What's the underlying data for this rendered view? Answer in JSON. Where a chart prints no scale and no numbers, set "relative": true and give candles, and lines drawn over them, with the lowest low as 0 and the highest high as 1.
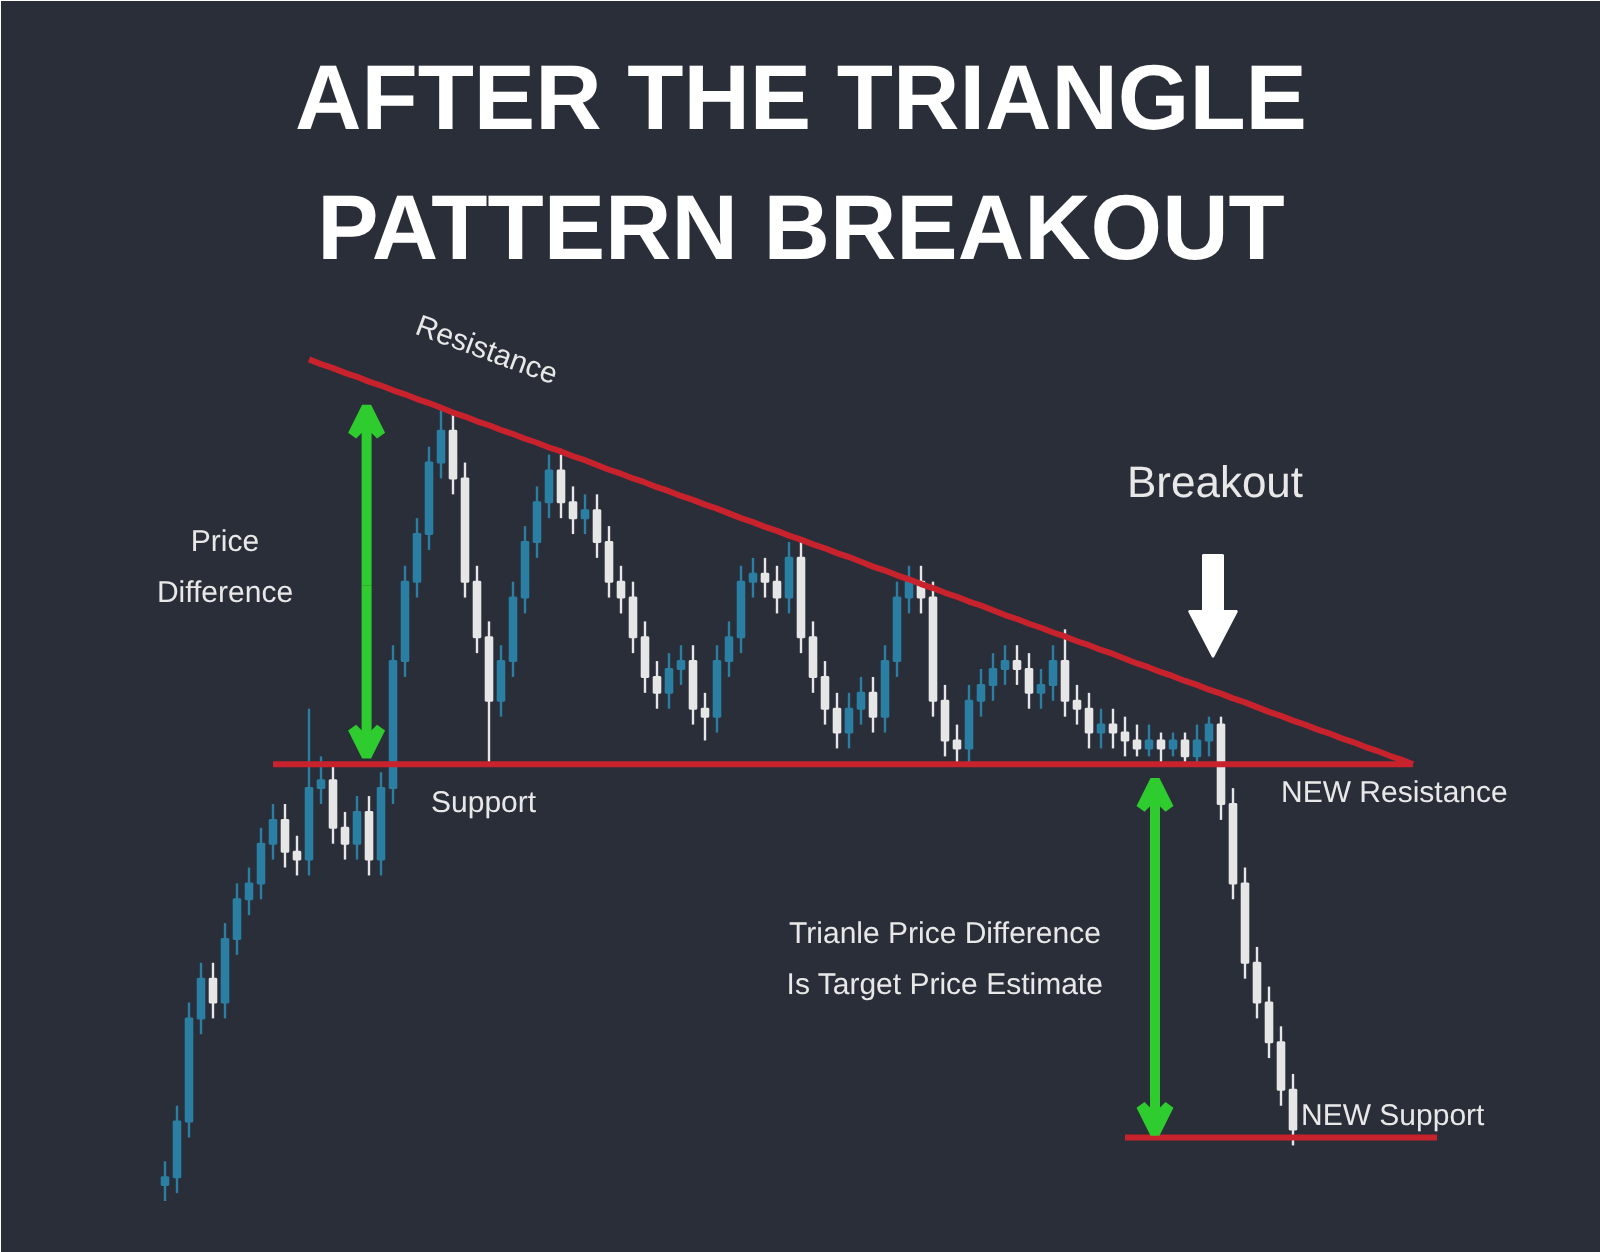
{
  "chart_data": {
    "type": "candlestick",
    "title": "AFTER THE TRIANGLE PATTERN BREAKOUT",
    "relative": true,
    "legend": false,
    "grid": false,
    "tick_labels": false,
    "categories": [
      null,
      null,
      null,
      null,
      null,
      null,
      null,
      null,
      null,
      null,
      null,
      null,
      null,
      null,
      null,
      null,
      null,
      null,
      null,
      null,
      null,
      null,
      null,
      null,
      null,
      null,
      null,
      null,
      null,
      null,
      null,
      null,
      null,
      null,
      null,
      null,
      null,
      null,
      null,
      null,
      null,
      null,
      null,
      null,
      null,
      null,
      null,
      null,
      null,
      null,
      null,
      null,
      null,
      null,
      null,
      null,
      null,
      null,
      null,
      null,
      null,
      null,
      null,
      null,
      null,
      null,
      null,
      null,
      null,
      null,
      null,
      null,
      null,
      null,
      null,
      null,
      null,
      null,
      null,
      null,
      null,
      null,
      null,
      null,
      null,
      null,
      null,
      null,
      null,
      null,
      null,
      null,
      null,
      null,
      null,
      null,
      null,
      null,
      null,
      null,
      null,
      null,
      null,
      null,
      null,
      null,
      null
    ],
    "ohlc": [
      [
        0.02,
        0.05,
        0.0,
        0.03
      ],
      [
        0.03,
        0.12,
        0.01,
        0.1
      ],
      [
        0.1,
        0.25,
        0.08,
        0.23
      ],
      [
        0.23,
        0.3,
        0.21,
        0.28
      ],
      [
        0.28,
        0.3,
        0.23,
        0.25
      ],
      [
        0.25,
        0.35,
        0.23,
        0.33
      ],
      [
        0.33,
        0.4,
        0.31,
        0.38
      ],
      [
        0.38,
        0.42,
        0.36,
        0.4
      ],
      [
        0.4,
        0.47,
        0.38,
        0.45
      ],
      [
        0.45,
        0.5,
        0.43,
        0.48
      ],
      [
        0.48,
        0.5,
        0.42,
        0.44
      ],
      [
        0.44,
        0.46,
        0.41,
        0.43
      ],
      [
        0.43,
        0.62,
        0.41,
        0.52
      ],
      [
        0.52,
        0.56,
        0.5,
        0.53
      ],
      [
        0.53,
        0.55,
        0.45,
        0.47
      ],
      [
        0.47,
        0.49,
        0.43,
        0.45
      ],
      [
        0.45,
        0.51,
        0.43,
        0.49
      ],
      [
        0.49,
        0.51,
        0.41,
        0.43
      ],
      [
        0.43,
        0.54,
        0.41,
        0.52
      ],
      [
        0.52,
        0.7,
        0.5,
        0.68
      ],
      [
        0.68,
        0.8,
        0.66,
        0.78
      ],
      [
        0.78,
        0.86,
        0.76,
        0.84
      ],
      [
        0.84,
        0.95,
        0.82,
        0.93
      ],
      [
        0.93,
        1.0,
        0.91,
        0.97
      ],
      [
        0.97,
        0.99,
        0.89,
        0.91
      ],
      [
        0.91,
        0.93,
        0.76,
        0.78
      ],
      [
        0.78,
        0.8,
        0.69,
        0.71
      ],
      [
        0.71,
        0.73,
        0.55,
        0.63
      ],
      [
        0.63,
        0.7,
        0.61,
        0.68
      ],
      [
        0.68,
        0.78,
        0.66,
        0.76
      ],
      [
        0.76,
        0.85,
        0.74,
        0.83
      ],
      [
        0.83,
        0.9,
        0.81,
        0.88
      ],
      [
        0.88,
        0.94,
        0.86,
        0.92
      ],
      [
        0.92,
        0.94,
        0.86,
        0.88
      ],
      [
        0.88,
        0.9,
        0.84,
        0.86
      ],
      [
        0.86,
        0.89,
        0.84,
        0.87
      ],
      [
        0.87,
        0.89,
        0.81,
        0.83
      ],
      [
        0.83,
        0.85,
        0.76,
        0.78
      ],
      [
        0.78,
        0.8,
        0.74,
        0.76
      ],
      [
        0.76,
        0.78,
        0.69,
        0.71
      ],
      [
        0.71,
        0.73,
        0.64,
        0.66
      ],
      [
        0.66,
        0.68,
        0.62,
        0.64
      ],
      [
        0.64,
        0.69,
        0.62,
        0.67
      ],
      [
        0.67,
        0.7,
        0.65,
        0.68
      ],
      [
        0.68,
        0.7,
        0.6,
        0.62
      ],
      [
        0.62,
        0.64,
        0.58,
        0.61
      ],
      [
        0.61,
        0.7,
        0.59,
        0.68
      ],
      [
        0.68,
        0.73,
        0.66,
        0.71
      ],
      [
        0.71,
        0.8,
        0.69,
        0.78
      ],
      [
        0.78,
        0.81,
        0.76,
        0.79
      ],
      [
        0.79,
        0.81,
        0.76,
        0.78
      ],
      [
        0.78,
        0.8,
        0.74,
        0.76
      ],
      [
        0.76,
        0.83,
        0.74,
        0.81
      ],
      [
        0.81,
        0.83,
        0.69,
        0.71
      ],
      [
        0.71,
        0.73,
        0.64,
        0.66
      ],
      [
        0.66,
        0.68,
        0.6,
        0.62
      ],
      [
        0.62,
        0.64,
        0.57,
        0.59
      ],
      [
        0.59,
        0.64,
        0.57,
        0.62
      ],
      [
        0.62,
        0.66,
        0.6,
        0.64
      ],
      [
        0.64,
        0.66,
        0.59,
        0.61
      ],
      [
        0.61,
        0.7,
        0.59,
        0.68
      ],
      [
        0.68,
        0.78,
        0.66,
        0.76
      ],
      [
        0.76,
        0.8,
        0.74,
        0.78
      ],
      [
        0.78,
        0.8,
        0.74,
        0.76
      ],
      [
        0.76,
        0.78,
        0.61,
        0.63
      ],
      [
        0.63,
        0.65,
        0.56,
        0.58
      ],
      [
        0.58,
        0.6,
        0.55,
        0.57
      ],
      [
        0.57,
        0.65,
        0.55,
        0.63
      ],
      [
        0.63,
        0.67,
        0.61,
        0.65
      ],
      [
        0.65,
        0.69,
        0.63,
        0.67
      ],
      [
        0.67,
        0.7,
        0.65,
        0.68
      ],
      [
        0.68,
        0.7,
        0.65,
        0.67
      ],
      [
        0.67,
        0.69,
        0.62,
        0.64
      ],
      [
        0.64,
        0.67,
        0.62,
        0.65
      ],
      [
        0.65,
        0.7,
        0.63,
        0.68
      ],
      [
        0.68,
        0.72,
        0.61,
        0.63
      ],
      [
        0.63,
        0.65,
        0.6,
        0.62
      ],
      [
        0.62,
        0.64,
        0.57,
        0.59
      ],
      [
        0.59,
        0.62,
        0.57,
        0.6
      ],
      [
        0.6,
        0.62,
        0.57,
        0.59
      ],
      [
        0.59,
        0.61,
        0.56,
        0.58
      ],
      [
        0.58,
        0.6,
        0.56,
        0.57
      ],
      [
        0.57,
        0.6,
        0.56,
        0.58
      ],
      [
        0.58,
        0.59,
        0.55,
        0.57
      ],
      [
        0.57,
        0.59,
        0.56,
        0.58
      ],
      [
        0.58,
        0.59,
        0.55,
        0.56
      ],
      [
        0.56,
        0.6,
        0.55,
        0.58
      ],
      [
        0.58,
        0.61,
        0.56,
        0.6
      ],
      [
        0.6,
        0.61,
        0.48,
        0.5
      ],
      [
        0.5,
        0.52,
        0.38,
        0.4
      ],
      [
        0.4,
        0.42,
        0.28,
        0.3
      ],
      [
        0.3,
        0.32,
        0.23,
        0.25
      ],
      [
        0.25,
        0.27,
        0.18,
        0.2
      ],
      [
        0.2,
        0.22,
        0.12,
        0.14
      ],
      [
        0.14,
        0.16,
        0.07,
        0.09
      ],
      null,
      null,
      null,
      null,
      null,
      null,
      null,
      null,
      null,
      null,
      null,
      null
    ],
    "colors": [
      "#2a7fa3",
      "#2a7fa3",
      "#2a7fa3",
      "#2a7fa3",
      "#e6e6e6",
      "#2a7fa3",
      "#2a7fa3",
      "#2a7fa3",
      "#2a7fa3",
      "#2a7fa3",
      "#e6e6e6",
      "#e6e6e6",
      "#2a7fa3",
      "#2a7fa3",
      "#e6e6e6",
      "#e6e6e6",
      "#2a7fa3",
      "#e6e6e6",
      "#2a7fa3",
      "#2a7fa3",
      "#2a7fa3",
      "#2a7fa3",
      "#2a7fa3",
      "#2a7fa3",
      "#e6e6e6",
      "#e6e6e6",
      "#e6e6e6",
      "#e6e6e6",
      "#2a7fa3",
      "#2a7fa3",
      "#2a7fa3",
      "#2a7fa3",
      "#2a7fa3",
      "#e6e6e6",
      "#e6e6e6",
      "#2a7fa3",
      "#e6e6e6",
      "#e6e6e6",
      "#e6e6e6",
      "#e6e6e6",
      "#e6e6e6",
      "#e6e6e6",
      "#2a7fa3",
      "#2a7fa3",
      "#e6e6e6",
      "#e6e6e6",
      "#2a7fa3",
      "#2a7fa3",
      "#2a7fa3",
      "#2a7fa3",
      "#e6e6e6",
      "#e6e6e6",
      "#2a7fa3",
      "#e6e6e6",
      "#e6e6e6",
      "#e6e6e6",
      "#e6e6e6",
      "#2a7fa3",
      "#2a7fa3",
      "#e6e6e6",
      "#2a7fa3",
      "#2a7fa3",
      "#2a7fa3",
      "#e6e6e6",
      "#e6e6e6",
      "#e6e6e6",
      "#e6e6e6",
      "#2a7fa3",
      "#2a7fa3",
      "#2a7fa3",
      "#2a7fa3",
      "#e6e6e6",
      "#e6e6e6",
      "#2a7fa3",
      "#2a7fa3",
      "#e6e6e6",
      "#e6e6e6",
      "#e6e6e6",
      "#2a7fa3",
      "#e6e6e6",
      "#e6e6e6",
      "#e6e6e6",
      "#2a7fa3",
      "#e6e6e6",
      "#2a7fa3",
      "#e6e6e6",
      "#2a7fa3",
      "#2a7fa3",
      "#e6e6e6",
      "#e6e6e6",
      "#e6e6e6",
      "#e6e6e6",
      "#e6e6e6",
      "#e6e6e6",
      "#e6e6e6",
      null,
      null,
      null,
      null,
      null,
      null,
      null,
      null,
      null,
      null,
      null,
      null
    ],
    "series": [
      {
        "type": "line",
        "name": "Resistance",
        "color": "#c8232c",
        "values": [
          null,
          null,
          null,
          null,
          null,
          null,
          null,
          null,
          null,
          null,
          null,
          null,
          1.06,
          1.054,
          1.049,
          1.043,
          1.038,
          1.032,
          1.027,
          1.021,
          1.016,
          1.01,
          1.005,
          0.999,
          0.993,
          0.988,
          0.982,
          0.977,
          0.971,
          0.966,
          0.96,
          0.955,
          0.949,
          0.944,
          0.938,
          0.933,
          0.927,
          0.921,
          0.916,
          0.91,
          0.905,
          0.899,
          0.894,
          0.888,
          0.883,
          0.877,
          0.872,
          0.866,
          0.86,
          0.855,
          0.849,
          0.844,
          0.838,
          0.833,
          0.827,
          0.822,
          0.816,
          0.811,
          0.805,
          0.799,
          0.794,
          0.788,
          0.783,
          0.777,
          0.772,
          0.766,
          0.761,
          0.755,
          0.75,
          0.744,
          0.738,
          0.733,
          0.727,
          0.722,
          0.716,
          0.711,
          0.705,
          0.7,
          0.694,
          0.689,
          0.683,
          0.677,
          0.672,
          0.666,
          0.661,
          0.655,
          0.65,
          0.644,
          0.639,
          0.633,
          0.628,
          0.622,
          0.616,
          0.611,
          0.605,
          0.6,
          0.594,
          0.589,
          0.583,
          0.578,
          0.572,
          0.567,
          0.561,
          0.556,
          0.55,
          null,
          null
        ]
      },
      {
        "type": "line",
        "name": "Support",
        "color": "#c8232c",
        "values": [
          null,
          null,
          null,
          null,
          null,
          null,
          null,
          null,
          null,
          0.55,
          0.55,
          0.55,
          0.55,
          0.55,
          0.55,
          0.55,
          0.55,
          0.55,
          0.55,
          0.55,
          0.55,
          0.55,
          0.55,
          0.55,
          0.55,
          0.55,
          0.55,
          0.55,
          0.55,
          0.55,
          0.55,
          0.55,
          0.55,
          0.55,
          0.55,
          0.55,
          0.55,
          0.55,
          0.55,
          0.55,
          0.55,
          0.55,
          0.55,
          0.55,
          0.55,
          0.55,
          0.55,
          0.55,
          0.55,
          0.55,
          0.55,
          0.55,
          0.55,
          0.55,
          0.55,
          0.55,
          0.55,
          0.55,
          0.55,
          0.55,
          0.55,
          0.55,
          0.55,
          0.55,
          0.55,
          0.55,
          0.55,
          0.55,
          0.55,
          0.55,
          0.55,
          0.55,
          0.55,
          0.55,
          0.55,
          0.55,
          0.55,
          0.55,
          0.55,
          0.55,
          0.55,
          0.55,
          0.55,
          0.55,
          0.55,
          0.55,
          0.55,
          0.55,
          0.55,
          0.55,
          0.55,
          0.55,
          0.55,
          0.55,
          0.55,
          0.55,
          0.55,
          0.55,
          0.55,
          0.55,
          0.55,
          0.55,
          0.55,
          0.55,
          0.55,
          null,
          null
        ]
      },
      {
        "type": "line",
        "name": "NEW Support",
        "color": "#c8232c",
        "values": [
          null,
          null,
          null,
          null,
          null,
          null,
          null,
          null,
          null,
          null,
          null,
          null,
          null,
          null,
          null,
          null,
          null,
          null,
          null,
          null,
          null,
          null,
          null,
          null,
          null,
          null,
          null,
          null,
          null,
          null,
          null,
          null,
          null,
          null,
          null,
          null,
          null,
          null,
          null,
          null,
          null,
          null,
          null,
          null,
          null,
          null,
          null,
          null,
          null,
          null,
          null,
          null,
          null,
          null,
          null,
          null,
          null,
          null,
          null,
          null,
          null,
          null,
          null,
          null,
          null,
          null,
          null,
          null,
          null,
          null,
          null,
          null,
          null,
          null,
          null,
          null,
          null,
          null,
          null,
          null,
          0.08,
          0.08,
          0.08,
          0.08,
          0.08,
          0.08,
          0.08,
          0.08,
          0.08,
          0.08,
          0.08,
          0.08,
          0.08,
          0.08,
          0.08,
          0.08,
          0.08,
          0.08,
          0.08,
          0.08,
          0.08,
          0.08,
          0.08,
          0.08,
          0.08,
          0.08,
          0.08
        ]
      }
    ],
    "annotations": [
      "Price Difference",
      {
        "text": "NEW Resistance",
        "y": 0.55
      },
      "Breakout",
      "Trianle Price Difference Is Target Price Estimate"
    ]
  }
}
